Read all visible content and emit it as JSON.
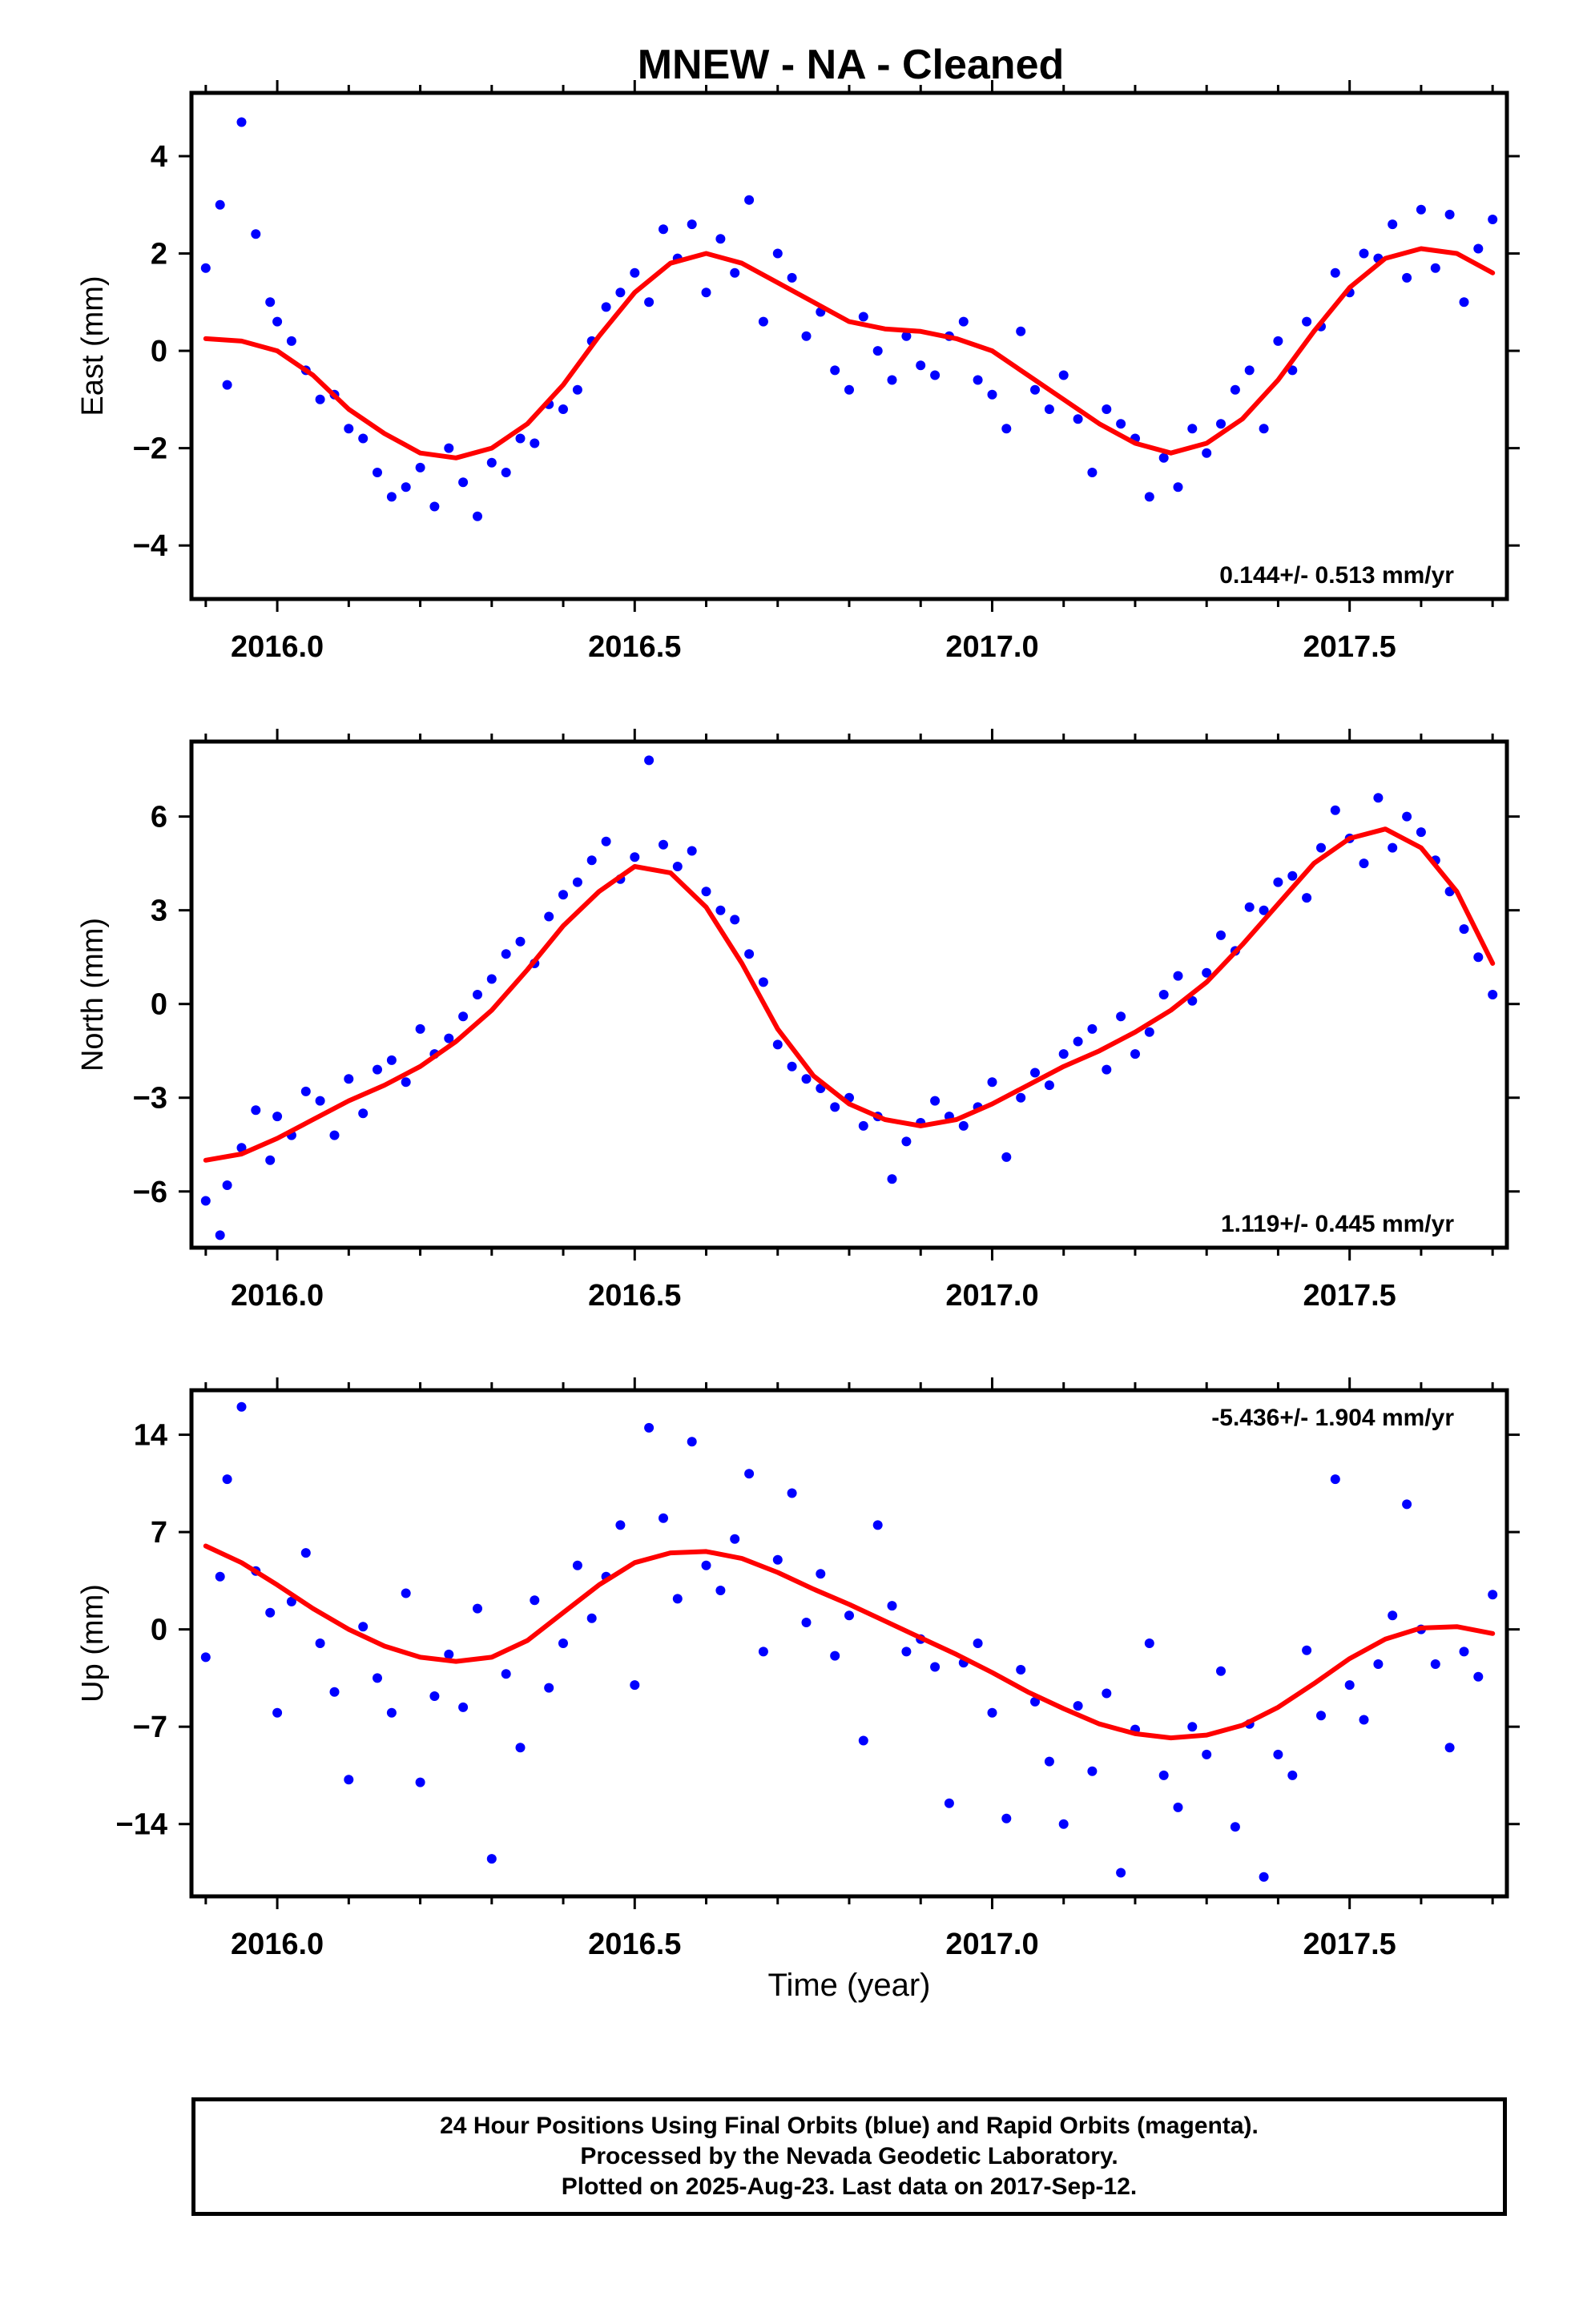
{
  "figure": {
    "title": "MNEW  - NA - Cleaned",
    "xlabel": "Time (year)",
    "footer_lines": [
      "24 Hour Positions Using Final Orbits (blue) and Rapid Orbits (magenta).",
      "Processed by the Nevada Geodetic Laboratory.",
      "Plotted on 2025-Aug-23. Last data on 2017-Sep-12."
    ]
  },
  "colors": {
    "final_orbits": "#0000ff",
    "model_fit": "#ff0000",
    "axes": "#000000"
  },
  "chart_data": [
    {
      "type": "scatter",
      "component": "east",
      "ylabel": "East (mm)",
      "rate_text": "0.144+/- 0.513 mm/yr",
      "rate_position": "bottom-right",
      "xlim": [
        2015.88,
        2017.72
      ],
      "ylim": [
        -5.1,
        5.3
      ],
      "x_ticks": [
        2016.0,
        2016.5,
        2017.0,
        2017.5
      ],
      "x_tick_labels": [
        "2016.0",
        "2016.5",
        "2017.0",
        "2017.5"
      ],
      "y_ticks": [
        -4,
        -2,
        0,
        2,
        4
      ],
      "y_tick_labels": [
        "−4",
        "−2",
        "0",
        "2",
        "4"
      ],
      "grid": false,
      "series": [
        {
          "role": "observations",
          "marker": "dot",
          "color": "#0000ff",
          "x": [
            2015.9,
            2015.92,
            2015.93,
            2015.95,
            2015.97,
            2015.99,
            2016.0,
            2016.02,
            2016.04,
            2016.06,
            2016.08,
            2016.1,
            2016.12,
            2016.14,
            2016.16,
            2016.18,
            2016.2,
            2016.22,
            2016.24,
            2016.26,
            2016.28,
            2016.3,
            2016.32,
            2016.34,
            2016.36,
            2016.38,
            2016.4,
            2016.42,
            2016.44,
            2016.46,
            2016.48,
            2016.5,
            2016.52,
            2016.54,
            2016.56,
            2016.58,
            2016.6,
            2016.62,
            2016.64,
            2016.66,
            2016.68,
            2016.7,
            2016.72,
            2016.74,
            2016.76,
            2016.78,
            2016.8,
            2016.82,
            2016.84,
            2016.86,
            2016.88,
            2016.9,
            2016.92,
            2016.94,
            2016.96,
            2016.98,
            2017.0,
            2017.02,
            2017.04,
            2017.06,
            2017.08,
            2017.1,
            2017.12,
            2017.14,
            2017.16,
            2017.18,
            2017.2,
            2017.22,
            2017.24,
            2017.26,
            2017.28,
            2017.3,
            2017.32,
            2017.34,
            2017.36,
            2017.38,
            2017.4,
            2017.42,
            2017.44,
            2017.46,
            2017.48,
            2017.5,
            2017.52,
            2017.54,
            2017.56,
            2017.58,
            2017.6,
            2017.62,
            2017.64,
            2017.66,
            2017.68,
            2017.7
          ],
          "y": [
            1.7,
            3.0,
            -0.7,
            4.7,
            2.4,
            1.0,
            0.6,
            0.2,
            -0.4,
            -1.0,
            -0.9,
            -1.6,
            -1.8,
            -2.5,
            -3.0,
            -2.8,
            -2.4,
            -3.2,
            -2.0,
            -2.7,
            -3.4,
            -2.3,
            -2.5,
            -1.8,
            -1.9,
            -1.1,
            -1.2,
            -0.8,
            0.2,
            0.9,
            1.2,
            1.6,
            1.0,
            2.5,
            1.9,
            2.6,
            1.2,
            2.3,
            1.6,
            3.1,
            0.6,
            2.0,
            1.5,
            0.3,
            0.8,
            -0.4,
            -0.8,
            0.7,
            0.0,
            -0.6,
            0.3,
            -0.3,
            -0.5,
            0.3,
            0.6,
            -0.6,
            -0.9,
            -1.6,
            0.4,
            -0.8,
            -1.2,
            -0.5,
            -1.4,
            -2.5,
            -1.2,
            -1.5,
            -1.8,
            -3.0,
            -2.2,
            -2.8,
            -1.6,
            -2.1,
            -1.5,
            -0.8,
            -0.4,
            -1.6,
            0.2,
            -0.4,
            0.6,
            0.5,
            1.6,
            1.2,
            2.0,
            1.9,
            2.6,
            1.5,
            2.9,
            1.7,
            2.8,
            1.0,
            2.1,
            2.7
          ]
        },
        {
          "role": "model",
          "color": "#ff0000",
          "x": [
            2015.9,
            2015.95,
            2016.0,
            2016.05,
            2016.1,
            2016.15,
            2016.2,
            2016.25,
            2016.3,
            2016.35,
            2016.4,
            2016.45,
            2016.5,
            2016.55,
            2016.6,
            2016.65,
            2016.7,
            2016.75,
            2016.8,
            2016.85,
            2016.9,
            2016.95,
            2017.0,
            2017.05,
            2017.1,
            2017.15,
            2017.2,
            2017.25,
            2017.3,
            2017.35,
            2017.4,
            2017.45,
            2017.5,
            2017.55,
            2017.6,
            2017.65,
            2017.7
          ],
          "y": [
            0.25,
            0.2,
            0.0,
            -0.5,
            -1.2,
            -1.7,
            -2.1,
            -2.2,
            -2.0,
            -1.5,
            -0.7,
            0.3,
            1.2,
            1.8,
            2.0,
            1.8,
            1.4,
            1.0,
            0.6,
            0.45,
            0.4,
            0.25,
            0.0,
            -0.5,
            -1.0,
            -1.5,
            -1.9,
            -2.1,
            -1.9,
            -1.4,
            -0.6,
            0.4,
            1.3,
            1.9,
            2.1,
            2.0,
            1.6
          ]
        }
      ]
    },
    {
      "type": "scatter",
      "component": "north",
      "ylabel": "North (mm)",
      "rate_text": "1.119+/- 0.445 mm/yr",
      "rate_position": "bottom-right",
      "xlim": [
        2015.88,
        2017.72
      ],
      "ylim": [
        -7.8,
        8.4
      ],
      "x_ticks": [
        2016.0,
        2016.5,
        2017.0,
        2017.5
      ],
      "x_tick_labels": [
        "2016.0",
        "2016.5",
        "2017.0",
        "2017.5"
      ],
      "y_ticks": [
        -6,
        -3,
        0,
        3,
        6
      ],
      "y_tick_labels": [
        "−6",
        "−3",
        "0",
        "3",
        "6"
      ],
      "grid": false,
      "series": [
        {
          "role": "observations",
          "marker": "dot",
          "color": "#0000ff",
          "x": [
            2015.9,
            2015.92,
            2015.93,
            2015.95,
            2015.97,
            2015.99,
            2016.0,
            2016.02,
            2016.04,
            2016.06,
            2016.08,
            2016.1,
            2016.12,
            2016.14,
            2016.16,
            2016.18,
            2016.2,
            2016.22,
            2016.24,
            2016.26,
            2016.28,
            2016.3,
            2016.32,
            2016.34,
            2016.36,
            2016.38,
            2016.4,
            2016.42,
            2016.44,
            2016.46,
            2016.48,
            2016.5,
            2016.52,
            2016.54,
            2016.56,
            2016.58,
            2016.6,
            2016.62,
            2016.64,
            2016.66,
            2016.68,
            2016.7,
            2016.72,
            2016.74,
            2016.76,
            2016.78,
            2016.8,
            2016.82,
            2016.84,
            2016.86,
            2016.88,
            2016.9,
            2016.92,
            2016.94,
            2016.96,
            2016.98,
            2017.0,
            2017.02,
            2017.04,
            2017.06,
            2017.08,
            2017.1,
            2017.12,
            2017.14,
            2017.16,
            2017.18,
            2017.2,
            2017.22,
            2017.24,
            2017.26,
            2017.28,
            2017.3,
            2017.32,
            2017.34,
            2017.36,
            2017.38,
            2017.4,
            2017.42,
            2017.44,
            2017.46,
            2017.48,
            2017.5,
            2017.52,
            2017.54,
            2017.56,
            2017.58,
            2017.6,
            2017.62,
            2017.64,
            2017.66,
            2017.68,
            2017.7
          ],
          "y": [
            -6.3,
            -7.4,
            -5.8,
            -4.6,
            -3.4,
            -5.0,
            -3.6,
            -4.2,
            -2.8,
            -3.1,
            -4.2,
            -2.4,
            -3.5,
            -2.1,
            -1.8,
            -2.5,
            -0.8,
            -1.6,
            -1.1,
            -0.4,
            0.3,
            0.8,
            1.6,
            2.0,
            1.3,
            2.8,
            3.5,
            3.9,
            4.6,
            5.2,
            4.0,
            4.7,
            7.8,
            5.1,
            4.4,
            4.9,
            3.6,
            3.0,
            2.7,
            1.6,
            0.7,
            -1.3,
            -2.0,
            -2.4,
            -2.7,
            -3.3,
            -3.0,
            -3.9,
            -3.6,
            -5.6,
            -4.4,
            -3.8,
            -3.1,
            -3.6,
            -3.9,
            -3.3,
            -2.5,
            -4.9,
            -3.0,
            -2.2,
            -2.6,
            -1.6,
            -1.2,
            -0.8,
            -2.1,
            -0.4,
            -1.6,
            -0.9,
            0.3,
            0.9,
            0.1,
            1.0,
            2.2,
            1.7,
            3.1,
            3.0,
            3.9,
            4.1,
            3.4,
            5.0,
            6.2,
            5.3,
            4.5,
            6.6,
            5.0,
            6.0,
            5.5,
            4.6,
            3.6,
            2.4,
            1.5,
            0.3
          ]
        },
        {
          "role": "model",
          "color": "#ff0000",
          "x": [
            2015.9,
            2015.95,
            2016.0,
            2016.05,
            2016.1,
            2016.15,
            2016.2,
            2016.25,
            2016.3,
            2016.35,
            2016.4,
            2016.45,
            2016.5,
            2016.55,
            2016.6,
            2016.65,
            2016.7,
            2016.75,
            2016.8,
            2016.85,
            2016.9,
            2016.95,
            2017.0,
            2017.05,
            2017.1,
            2017.15,
            2017.2,
            2017.25,
            2017.3,
            2017.35,
            2017.4,
            2017.45,
            2017.5,
            2017.55,
            2017.6,
            2017.65,
            2017.7
          ],
          "y": [
            -5.0,
            -4.8,
            -4.3,
            -3.7,
            -3.1,
            -2.6,
            -2.0,
            -1.2,
            -0.2,
            1.1,
            2.5,
            3.6,
            4.4,
            4.2,
            3.1,
            1.3,
            -0.8,
            -2.3,
            -3.2,
            -3.7,
            -3.9,
            -3.7,
            -3.2,
            -2.6,
            -2.0,
            -1.5,
            -0.9,
            -0.2,
            0.7,
            1.9,
            3.2,
            4.5,
            5.3,
            5.6,
            5.0,
            3.6,
            1.3
          ]
        }
      ]
    },
    {
      "type": "scatter",
      "component": "up",
      "ylabel": "Up (mm)",
      "rate_text": "-5.436+/- 1.904 mm/yr",
      "rate_position": "top-right",
      "xlim": [
        2015.88,
        2017.72
      ],
      "ylim": [
        -19.2,
        17.2
      ],
      "x_ticks": [
        2016.0,
        2016.5,
        2017.0,
        2017.5
      ],
      "x_tick_labels": [
        "2016.0",
        "2016.5",
        "2017.0",
        "2017.5"
      ],
      "y_ticks": [
        -14,
        -7,
        0,
        7,
        14
      ],
      "y_tick_labels": [
        "−14",
        "−7",
        "0",
        "7",
        "14"
      ],
      "grid": false,
      "series": [
        {
          "role": "observations",
          "marker": "dot",
          "color": "#0000ff",
          "x": [
            2015.9,
            2015.92,
            2015.93,
            2015.95,
            2015.97,
            2015.99,
            2016.0,
            2016.02,
            2016.04,
            2016.06,
            2016.08,
            2016.1,
            2016.12,
            2016.14,
            2016.16,
            2016.18,
            2016.2,
            2016.22,
            2016.24,
            2016.26,
            2016.28,
            2016.3,
            2016.32,
            2016.34,
            2016.36,
            2016.38,
            2016.4,
            2016.42,
            2016.44,
            2016.46,
            2016.48,
            2016.5,
            2016.52,
            2016.54,
            2016.56,
            2016.58,
            2016.6,
            2016.62,
            2016.64,
            2016.66,
            2016.68,
            2016.7,
            2016.72,
            2016.74,
            2016.76,
            2016.78,
            2016.8,
            2016.82,
            2016.84,
            2016.86,
            2016.88,
            2016.9,
            2016.92,
            2016.94,
            2016.96,
            2016.98,
            2017.0,
            2017.02,
            2017.04,
            2017.06,
            2017.08,
            2017.1,
            2017.12,
            2017.14,
            2017.16,
            2017.18,
            2017.2,
            2017.22,
            2017.24,
            2017.26,
            2017.28,
            2017.3,
            2017.32,
            2017.34,
            2017.36,
            2017.38,
            2017.4,
            2017.42,
            2017.44,
            2017.46,
            2017.48,
            2017.5,
            2017.52,
            2017.54,
            2017.56,
            2017.58,
            2017.6,
            2017.62,
            2017.64,
            2017.66,
            2017.68,
            2017.7
          ],
          "y": [
            -2.0,
            3.8,
            10.8,
            16.0,
            4.2,
            1.2,
            -6.0,
            2.0,
            5.5,
            -1.0,
            -4.5,
            -10.8,
            0.2,
            -3.5,
            -6.0,
            2.6,
            -11.0,
            -4.8,
            -1.8,
            -5.6,
            1.5,
            -16.5,
            -3.2,
            -8.5,
            2.1,
            -4.2,
            -1.0,
            4.6,
            0.8,
            3.8,
            7.5,
            -4.0,
            14.5,
            8.0,
            2.2,
            13.5,
            4.6,
            2.8,
            6.5,
            11.2,
            -1.6,
            5.0,
            9.8,
            0.5,
            4.0,
            -1.9,
            1.0,
            -8.0,
            7.5,
            1.7,
            -1.6,
            -0.7,
            -2.7,
            -12.5,
            -2.4,
            -1.0,
            -6.0,
            -13.6,
            -2.9,
            -5.2,
            -9.5,
            -14.0,
            -5.5,
            -10.2,
            -4.6,
            -17.5,
            -7.2,
            -1.0,
            -10.5,
            -12.8,
            -7.0,
            -9.0,
            -3.0,
            -14.2,
            -6.8,
            -17.8,
            -9.0,
            -10.5,
            -1.5,
            -6.2,
            10.8,
            -4.0,
            -6.5,
            -2.5,
            1.0,
            9.0,
            0.0,
            -2.5,
            -8.5,
            -1.6,
            -3.4,
            2.5
          ]
        },
        {
          "role": "model",
          "color": "#ff0000",
          "x": [
            2015.9,
            2015.95,
            2016.0,
            2016.05,
            2016.1,
            2016.15,
            2016.2,
            2016.25,
            2016.3,
            2016.35,
            2016.4,
            2016.45,
            2016.5,
            2016.55,
            2016.6,
            2016.65,
            2016.7,
            2016.75,
            2016.8,
            2016.85,
            2016.9,
            2016.95,
            2017.0,
            2017.05,
            2017.1,
            2017.15,
            2017.2,
            2017.25,
            2017.3,
            2017.35,
            2017.4,
            2017.45,
            2017.5,
            2017.55,
            2017.6,
            2017.65,
            2017.7
          ],
          "y": [
            6.0,
            4.8,
            3.2,
            1.5,
            0.0,
            -1.2,
            -2.0,
            -2.3,
            -2.0,
            -0.8,
            1.2,
            3.2,
            4.8,
            5.5,
            5.6,
            5.1,
            4.1,
            2.9,
            1.8,
            0.6,
            -0.6,
            -1.8,
            -3.1,
            -4.5,
            -5.7,
            -6.8,
            -7.5,
            -7.8,
            -7.6,
            -6.9,
            -5.6,
            -3.9,
            -2.1,
            -0.7,
            0.1,
            0.2,
            -0.3
          ]
        }
      ]
    }
  ]
}
